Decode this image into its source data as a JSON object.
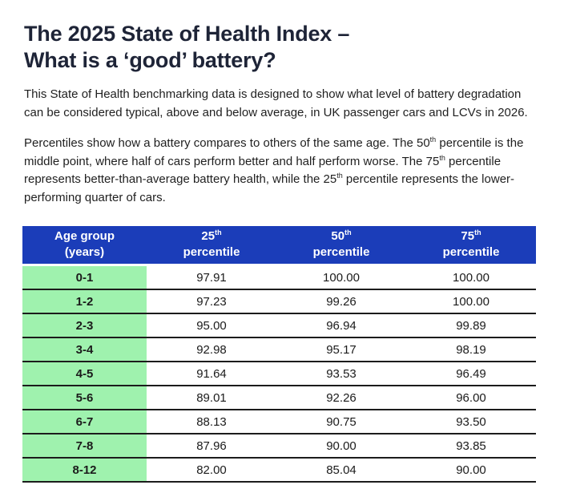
{
  "title": {
    "line1": "The 2025 State of Health Index –",
    "line2": "What is a ‘good’ battery?"
  },
  "intro": "This State of Health benchmarking data is designed to show what level of battery degradation can be considered typical, above and below average, in UK passenger cars and LCVs in 2026.",
  "percentiles_paragraph": {
    "s1": "Percentiles show how a battery compares to others of the same age. The 50",
    "sup1": "th",
    "s2": " percentile is the middle point, where half of cars perform better and half perform worse. The 75",
    "sup2": "th",
    "s3": " percentile represents better-than-average battery health, while the 25",
    "sup3": "th",
    "s4": " percentile represents the lower-performing quarter of cars."
  },
  "table": {
    "header": {
      "age": "Age group\n(years)",
      "columns": [
        {
          "num": "25",
          "sup": "th",
          "label": "percentile"
        },
        {
          "num": "50",
          "sup": "th",
          "label": "percentile"
        },
        {
          "num": "75",
          "sup": "th",
          "label": "percentile"
        }
      ]
    },
    "rows": [
      {
        "age": "0-1",
        "p25": "97.91",
        "p50": "100.00",
        "p75": "100.00"
      },
      {
        "age": "1-2",
        "p25": "97.23",
        "p50": "99.26",
        "p75": "100.00"
      },
      {
        "age": "2-3",
        "p25": "95.00",
        "p50": "96.94",
        "p75": "99.89"
      },
      {
        "age": "3-4",
        "p25": "92.98",
        "p50": "95.17",
        "p75": "98.19"
      },
      {
        "age": "4-5",
        "p25": "91.64",
        "p50": "93.53",
        "p75": "96.49"
      },
      {
        "age": "5-6",
        "p25": "89.01",
        "p50": "92.26",
        "p75": "96.00"
      },
      {
        "age": "6-7",
        "p25": "88.13",
        "p50": "90.75",
        "p75": "93.50"
      },
      {
        "age": "7-8",
        "p25": "87.96",
        "p50": "90.00",
        "p75": "93.85"
      },
      {
        "age": "8-12",
        "p25": "82.00",
        "p50": "85.04",
        "p75": "90.00"
      }
    ]
  },
  "colors": {
    "header_blue": "#1b3db9",
    "age_green": "#9ff2ae",
    "title_navy": "#1e2437",
    "row_divider": "#1c1c1c",
    "background": "#ffffff"
  }
}
